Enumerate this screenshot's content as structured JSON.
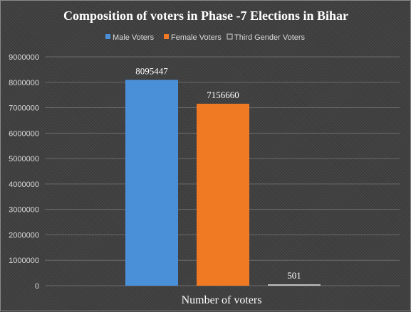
{
  "chart_data": {
    "type": "bar",
    "title": "Composition of voters in Phase -7 Elections in Bihar",
    "categories": [
      "Number of voters"
    ],
    "xlabel": "Number of voters",
    "ylabel": "",
    "ylim": [
      0,
      9000000
    ],
    "yticks": [
      0,
      1000000,
      2000000,
      3000000,
      4000000,
      5000000,
      6000000,
      7000000,
      8000000,
      9000000
    ],
    "grid": true,
    "legend_position": "top",
    "series": [
      {
        "name": "Male Voters",
        "values": [
          8095447
        ],
        "color": "#4a90d9",
        "label": "8095447"
      },
      {
        "name": "Female Voters",
        "values": [
          7156660
        ],
        "color": "#f07a24",
        "label": "7156660"
      },
      {
        "name": "Third Gender Voters",
        "values": [
          501
        ],
        "color": "#bfbfbf",
        "label": "501"
      }
    ]
  }
}
